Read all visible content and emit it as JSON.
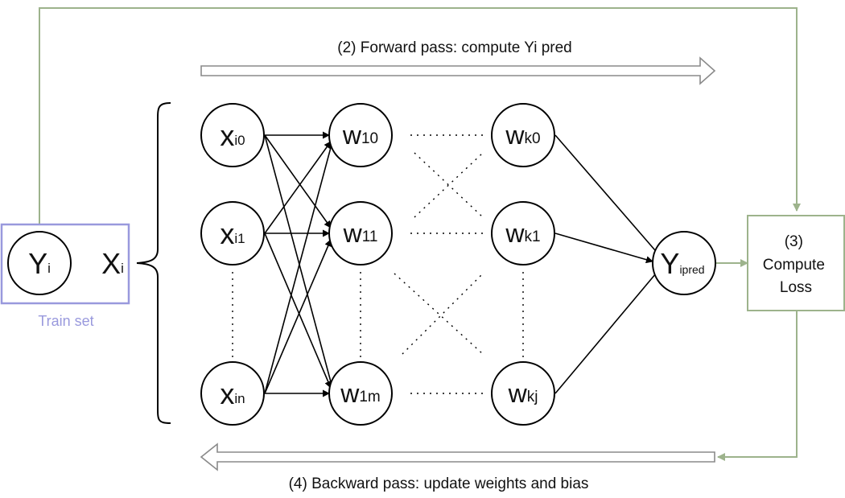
{
  "forward_label": "(2) Forward pass: compute Yi pred",
  "backward_label": "(4) Backward pass: update weights and bias",
  "train_set": {
    "caption": "Train set",
    "y": {
      "main": "Y",
      "sub": "i"
    },
    "x": {
      "main": "X",
      "sub": "i"
    }
  },
  "nodes": {
    "xi0": {
      "main": "x",
      "sub": "i0"
    },
    "xi1": {
      "main": "x",
      "sub": "i1"
    },
    "xin": {
      "main": "x",
      "sub": "in"
    },
    "w10": {
      "main": "w",
      "sub": "10"
    },
    "w11": {
      "main": "w",
      "sub": "11"
    },
    "w1m": {
      "main": "w",
      "sub": "1m"
    },
    "wk0": {
      "main": "w",
      "sub": "k0"
    },
    "wk1": {
      "main": "w",
      "sub": "k1"
    },
    "wkj": {
      "main": "w",
      "sub": "kj"
    },
    "ypred": {
      "main": "Y",
      "sub": "ipred"
    }
  },
  "loss_box": {
    "line1": "(3)",
    "line2": "Compute",
    "line3": "Loss"
  },
  "colors": {
    "train_set": "#9999dd",
    "flow": "#9db38c",
    "arrow_outline": "#8a8a8a"
  }
}
